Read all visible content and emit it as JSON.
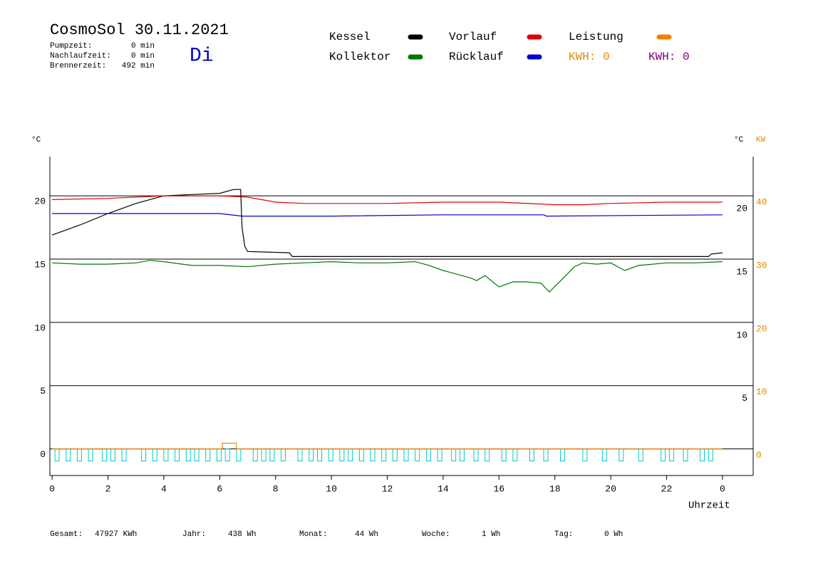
{
  "title": "CosmoSol 30.11.2021",
  "weekday": "Di",
  "stats": [
    {
      "label": "Pumpzeit:",
      "value": "0 min"
    },
    {
      "label": "Nachlaufzeit:",
      "value": "0 min"
    },
    {
      "label": "Brennerzeit:",
      "value": "492 min"
    }
  ],
  "kwh": [
    {
      "label": "KWH: 0",
      "color": "#e08a00"
    },
    {
      "label": "KWH: 0",
      "color": "#800080"
    }
  ],
  "footer": [
    {
      "label": "Gesamt:",
      "value": "47927 KWh"
    },
    {
      "label": "Jahr:",
      "value": "438 Wh"
    },
    {
      "label": "Monat:",
      "value": "44 Wh"
    },
    {
      "label": "Woche:",
      "value": "1 Wh"
    },
    {
      "label": "Tag:",
      "value": "0 Wh"
    }
  ],
  "chart_data": {
    "type": "line",
    "ylabel": "°C",
    "y2label_unit": "°C",
    "y2label": "KW",
    "xlabel": "Uhrzeit",
    "xlim": [
      -0.08,
      25.1
    ],
    "xticks": [
      0,
      2,
      4,
      6,
      8,
      10,
      12,
      14,
      16,
      18,
      20,
      22,
      {
        "value": 24,
        "label": "0"
      }
    ],
    "ylim": [
      -2.1,
      23.1
    ],
    "yticks": [
      0,
      5,
      10,
      15,
      20
    ],
    "right_yticks": [
      5,
      10,
      15,
      20
    ],
    "y2lim": [
      -4.2,
      46.2
    ],
    "y2ticks": [
      0,
      10,
      20,
      30,
      40
    ],
    "grid": true,
    "series": [
      {
        "name": "Kessel",
        "color": "#000000",
        "x": [
          0,
          1,
          2,
          3,
          4,
          5,
          6,
          6.5,
          6.75,
          6.8,
          6.9,
          7.0,
          8.5,
          8.6,
          23.5,
          23.6,
          24
        ],
        "values": [
          16.9,
          17.7,
          18.6,
          19.4,
          20.0,
          20.1,
          20.2,
          20.5,
          20.5,
          17.5,
          16.0,
          15.6,
          15.5,
          15.2,
          15.2,
          15.4,
          15.5
        ]
      },
      {
        "name": "Kollektor",
        "color": "#007800",
        "x": [
          0,
          1,
          2,
          3,
          3.5,
          4,
          5,
          6,
          7,
          8,
          9,
          10,
          11,
          12,
          13,
          13.5,
          14,
          14.5,
          15,
          15.2,
          15.5,
          16,
          16.5,
          17,
          17.5,
          17.8,
          18.3,
          18.7,
          19,
          19.5,
          20,
          20.5,
          21,
          21.5,
          22,
          23,
          24
        ],
        "values": [
          14.7,
          14.6,
          14.6,
          14.7,
          14.9,
          14.8,
          14.5,
          14.5,
          14.4,
          14.6,
          14.7,
          14.8,
          14.7,
          14.7,
          14.8,
          14.5,
          14.1,
          13.8,
          13.5,
          13.3,
          13.7,
          12.8,
          13.2,
          13.2,
          13.1,
          12.4,
          13.5,
          14.4,
          14.7,
          14.6,
          14.7,
          14.1,
          14.5,
          14.6,
          14.7,
          14.7,
          14.8
        ]
      },
      {
        "name": "Vorlauf",
        "color": "#e00000",
        "x": [
          0,
          2,
          4,
          6,
          7,
          8,
          9,
          12,
          14,
          16,
          18,
          19,
          20,
          22,
          24
        ],
        "values": [
          19.7,
          19.8,
          20.0,
          20.0,
          19.9,
          19.5,
          19.4,
          19.4,
          19.5,
          19.5,
          19.3,
          19.3,
          19.4,
          19.5,
          19.5
        ]
      },
      {
        "name": "Rücklauf",
        "color": "#0000d0",
        "x": [
          0,
          2,
          4,
          6,
          6.8,
          10,
          14,
          17.6,
          17.7,
          24
        ],
        "values": [
          18.6,
          18.6,
          18.6,
          18.6,
          18.4,
          18.4,
          18.5,
          18.5,
          18.4,
          18.5
        ]
      },
      {
        "name": "Leistung",
        "color": "#f08000",
        "axis": "y2",
        "x": [
          0,
          6.1,
          6.1,
          6.6,
          6.6,
          24
        ],
        "values": [
          0,
          0,
          0.9,
          0.9,
          0,
          0
        ]
      }
    ],
    "pulses": {
      "color": "#00c8c8",
      "x": [
        0.1,
        0.5,
        0.9,
        1.3,
        1.8,
        2.1,
        2.5,
        3.2,
        3.6,
        4.0,
        4.4,
        4.8,
        5.1,
        5.5,
        5.9,
        6.2,
        6.6,
        7.2,
        7.5,
        7.8,
        8.2,
        8.8,
        9.2,
        9.5,
        9.9,
        10.3,
        10.6,
        11.0,
        11.4,
        11.8,
        12.2,
        12.6,
        13.0,
        13.4,
        13.8,
        14.3,
        14.6,
        15.1,
        15.5,
        16.1,
        16.5,
        17.1,
        17.6,
        18.2,
        19.0,
        19.7,
        20.3,
        21.0,
        21.8,
        22.1,
        22.6,
        23.2,
        23.5
      ]
    }
  }
}
